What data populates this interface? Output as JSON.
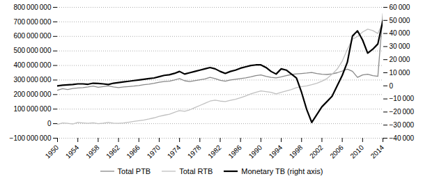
{
  "chart_data": {
    "type": "line",
    "x": [
      1950,
      1951,
      1952,
      1953,
      1954,
      1955,
      1956,
      1957,
      1958,
      1959,
      1960,
      1961,
      1962,
      1963,
      1964,
      1965,
      1966,
      1967,
      1968,
      1969,
      1970,
      1971,
      1972,
      1973,
      1974,
      1975,
      1976,
      1977,
      1978,
      1979,
      1980,
      1981,
      1982,
      1983,
      1984,
      1985,
      1986,
      1987,
      1988,
      1989,
      1990,
      1991,
      1992,
      1993,
      1994,
      1995,
      1996,
      1997,
      1998,
      1999,
      2000,
      2001,
      2002,
      2003,
      2004,
      2005,
      2006,
      2007,
      2008,
      2009,
      2010,
      2011,
      2012,
      2013,
      2014
    ],
    "series": [
      {
        "name": "Total PTB",
        "color": "#888888",
        "values": [
          230000000,
          240000000,
          235000000,
          242000000,
          245000000,
          248000000,
          252000000,
          258000000,
          250000000,
          255000000,
          260000000,
          252000000,
          248000000,
          252000000,
          255000000,
          258000000,
          262000000,
          268000000,
          272000000,
          278000000,
          285000000,
          290000000,
          292000000,
          300000000,
          310000000,
          295000000,
          290000000,
          296000000,
          302000000,
          308000000,
          318000000,
          310000000,
          298000000,
          292000000,
          300000000,
          305000000,
          310000000,
          315000000,
          322000000,
          330000000,
          335000000,
          325000000,
          318000000,
          315000000,
          322000000,
          330000000,
          338000000,
          342000000,
          345000000,
          348000000,
          352000000,
          345000000,
          340000000,
          338000000,
          342000000,
          350000000,
          362000000,
          375000000,
          360000000,
          318000000,
          335000000,
          340000000,
          330000000,
          325000000,
          760000000
        ]
      },
      {
        "name": "Total RTB",
        "color": "#c0c0c0",
        "values": [
          -5000000,
          5000000,
          2000000,
          -2000000,
          8000000,
          5000000,
          2000000,
          6000000,
          0,
          3000000,
          8000000,
          4000000,
          2000000,
          5000000,
          10000000,
          15000000,
          20000000,
          25000000,
          32000000,
          40000000,
          50000000,
          58000000,
          65000000,
          78000000,
          90000000,
          85000000,
          95000000,
          110000000,
          125000000,
          140000000,
          155000000,
          162000000,
          155000000,
          152000000,
          160000000,
          168000000,
          178000000,
          190000000,
          205000000,
          215000000,
          225000000,
          220000000,
          215000000,
          205000000,
          215000000,
          225000000,
          235000000,
          248000000,
          255000000,
          260000000,
          268000000,
          278000000,
          292000000,
          310000000,
          340000000,
          375000000,
          430000000,
          510000000,
          580000000,
          600000000,
          630000000,
          650000000,
          640000000,
          620000000,
          700000000
        ]
      },
      {
        "name": "Monetary TB (right axis)",
        "color": "#000000",
        "axis": "y2",
        "values": [
          0,
          500,
          800,
          1000,
          1500,
          1500,
          1200,
          2000,
          1800,
          1500,
          1000,
          2000,
          2500,
          3000,
          3500,
          4000,
          4500,
          5000,
          5500,
          6000,
          7000,
          8000,
          8500,
          9500,
          11000,
          9000,
          10000,
          11000,
          12000,
          13000,
          14000,
          13000,
          11000,
          9500,
          11000,
          12000,
          13500,
          14500,
          15500,
          16000,
          16000,
          14000,
          11000,
          9000,
          13000,
          12000,
          9000,
          6000,
          -5000,
          -18000,
          -28000,
          -22000,
          -16000,
          -12000,
          -8000,
          0,
          8000,
          18000,
          38000,
          42000,
          35000,
          25000,
          28000,
          32000,
          50000
        ]
      }
    ],
    "xlim": [
      1950,
      2014
    ],
    "xticks": [
      1950,
      1954,
      1958,
      1962,
      1966,
      1970,
      1974,
      1978,
      1982,
      1986,
      1990,
      1994,
      1998,
      2002,
      2006,
      2010,
      2014
    ],
    "ylim": [
      -100000000,
      800000000
    ],
    "yticks": [
      {
        "value": -100000000,
        "label": "−100 000 000"
      },
      0,
      {
        "value": 100000000,
        "label": "100 000 000"
      },
      {
        "value": 200000000,
        "label": "200 000 000"
      },
      {
        "value": 300000000,
        "label": "300 000 000"
      },
      {
        "value": 400000000,
        "label": "400 000 000"
      },
      {
        "value": 500000000,
        "label": "500 000 000"
      },
      {
        "value": 600000000,
        "label": "600 000 000"
      },
      {
        "value": 700000000,
        "label": "700 000 000"
      },
      {
        "value": 800000000,
        "label": "800 000 000"
      }
    ],
    "y2lim": [
      -40000,
      60000
    ],
    "y2ticks": [
      {
        "value": -40000,
        "label": "−40 000"
      },
      {
        "value": -30000,
        "label": "−30 000"
      },
      {
        "value": -20000,
        "label": "−20 000"
      },
      {
        "value": -10000,
        "label": "−10 000"
      },
      0,
      {
        "value": 10000,
        "label": "10 000"
      },
      {
        "value": 20000,
        "label": "20 000"
      },
      {
        "value": 30000,
        "label": "30 000"
      },
      {
        "value": 40000,
        "label": "40 000"
      },
      {
        "value": 50000,
        "label": "50 000"
      },
      {
        "value": 60000,
        "label": "60 000"
      }
    ],
    "grid": true,
    "legend": "bottom"
  }
}
